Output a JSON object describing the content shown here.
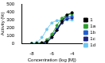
{
  "chart_data": {
    "type": "line",
    "x_label": "Concentration (log [M])",
    "y_label": "Activity (%)",
    "x": [
      -8,
      -7.5,
      -7,
      -6.5,
      -6,
      -5.5,
      -5,
      -4.5,
      -4
    ],
    "series": [
      {
        "name": "1",
        "color": "#000000",
        "values": [
          0,
          2,
          8,
          25,
          80,
          170,
          280,
          360,
          390
        ]
      },
      {
        "name": "1a",
        "color": "#2ca02c",
        "values": [
          2,
          5,
          15,
          50,
          120,
          230,
          320,
          360,
          375
        ]
      },
      {
        "name": "1b",
        "color": "#1f5fd0",
        "values": [
          0,
          3,
          10,
          35,
          100,
          190,
          280,
          330,
          345
        ]
      },
      {
        "name": "1c",
        "color": "#1a237e",
        "values": [
          0,
          2,
          8,
          28,
          80,
          170,
          260,
          310,
          325
        ]
      },
      {
        "name": "1d",
        "color": "#6ec6f0",
        "values": [
          5,
          20,
          80,
          180,
          260,
          290,
          300,
          300,
          300
        ]
      }
    ],
    "xlim": [
      -9,
      -3
    ],
    "xticks": [
      -8,
      -6,
      -4
    ],
    "ylim": [
      0,
      500
    ],
    "yticks": [
      0,
      100,
      200,
      300,
      400,
      500
    ],
    "grid": false,
    "legend": "right",
    "marker": "circle"
  }
}
